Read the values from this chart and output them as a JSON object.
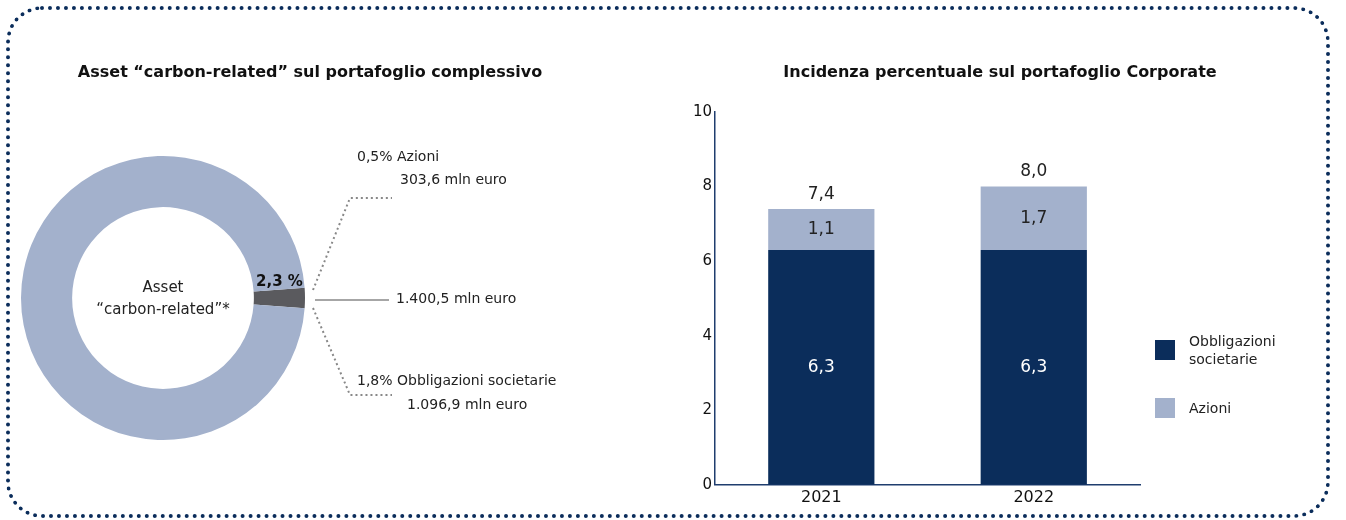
{
  "chart_data": [
    {
      "type": "donut",
      "title": "Asset “carbon-related” sul portafoglio complessivo",
      "categories": [
        null,
        null
      ],
      "values": [
        2.3,
        97.7
      ],
      "colors": [
        "#5a5a5e",
        "#a3b1cc"
      ],
      "value_labels": [
        "2,3 %",
        null
      ],
      "annotations": [
        "Asset “carbon-related”*",
        "0,5% Azioni",
        "303,6 mln euro",
        "1.400,5 mln euro",
        "1,8% Obbligazioni societarie",
        "1.096,9 mln euro"
      ]
    },
    {
      "type": "bar",
      "title": "Incidenza percentuale sul portafoglio Corporate",
      "categories": [
        "2021",
        "2022"
      ],
      "stacked": true,
      "series": [
        {
          "name": "Obbligazioni societarie",
          "color": "#0b2d5b",
          "values": [
            6.3,
            6.3
          ],
          "value_labels": [
            "6,3",
            "6,3"
          ]
        },
        {
          "name": "Azioni",
          "color": "#a3b1cc",
          "values": [
            1.1,
            1.7
          ],
          "value_labels": [
            "1,1",
            "1,7"
          ]
        }
      ],
      "totals": [
        "7,4",
        "8,0"
      ],
      "ylim": [
        0,
        10
      ],
      "yticks": [
        0,
        2,
        4,
        6,
        8,
        10
      ],
      "grid": false,
      "legend": "right"
    }
  ]
}
